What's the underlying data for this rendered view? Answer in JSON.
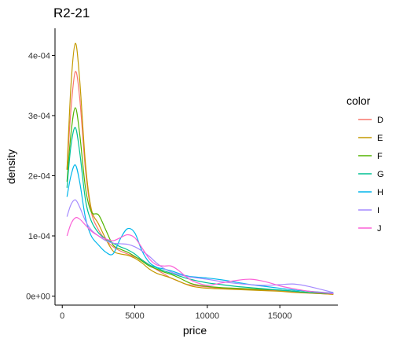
{
  "chart_data": {
    "type": "line",
    "title": "R2-21",
    "xlabel": "price",
    "ylabel": "density",
    "xlim": [
      -500,
      19000
    ],
    "ylim": [
      -1.5e-05,
      0.000445
    ],
    "x_ticks": [
      0,
      5000,
      10000,
      15000
    ],
    "x_tick_labels": [
      "0",
      "5000",
      "10000",
      "15000"
    ],
    "y_ticks": [
      0,
      0.0001,
      0.0002,
      0.0003,
      0.0004
    ],
    "y_tick_labels": [
      "0e+00",
      "1e-04",
      "2e-04",
      "3e-04",
      "4e-04"
    ],
    "grid": false,
    "legend": {
      "title": "color",
      "position": "right"
    },
    "series": [
      {
        "name": "D",
        "color": "#F8766D",
        "x": [
          326,
          600,
          900,
          1200,
          1600,
          2000,
          2500,
          3000,
          3500,
          4000,
          4500,
          5000,
          5500,
          6000,
          6500,
          7000,
          7500,
          8000,
          8500,
          9000,
          10000,
          11000,
          12000,
          13000,
          14000,
          15000,
          16000,
          17000,
          18692
        ],
        "y": [
          0.00021,
          0.00031,
          0.000373,
          0.00033,
          0.00021,
          0.00014,
          0.00011,
          9.3e-05,
          8.2e-05,
          7.5e-05,
          7e-05,
          6.5e-05,
          6e-05,
          5.2e-05,
          4.4e-05,
          3.7e-05,
          3e-05,
          2.5e-05,
          2e-05,
          1.8e-05,
          1.5e-05,
          1.3e-05,
          1.2e-05,
          1.1e-05,
          1e-05,
          9e-06,
          7e-06,
          5e-06,
          3e-06
        ]
      },
      {
        "name": "E",
        "color": "#C49A00",
        "x": [
          326,
          600,
          900,
          1200,
          1600,
          2000,
          2500,
          3000,
          3500,
          4000,
          4500,
          5000,
          5500,
          6000,
          6500,
          7000,
          7500,
          8000,
          8500,
          9000,
          10000,
          11000,
          12000,
          13000,
          14000,
          15000,
          16000,
          17000,
          18692
        ],
        "y": [
          0.00021,
          0.00035,
          0.00042,
          0.00036,
          0.00022,
          0.000145,
          0.00012,
          9.5e-05,
          7.5e-05,
          7e-05,
          6.8e-05,
          6.3e-05,
          5.5e-05,
          4.5e-05,
          3.8e-05,
          3.4e-05,
          3e-05,
          2.5e-05,
          2e-05,
          1.6e-05,
          1.3e-05,
          1.2e-05,
          1.1e-05,
          1e-05,
          9e-06,
          8e-06,
          6e-06,
          5e-06,
          3e-06
        ]
      },
      {
        "name": "F",
        "color": "#53B400",
        "x": [
          326,
          600,
          900,
          1200,
          1600,
          2000,
          2500,
          3000,
          3500,
          4000,
          4500,
          5000,
          5500,
          6000,
          6500,
          7000,
          7500,
          8000,
          8500,
          9000,
          10000,
          11000,
          12000,
          13000,
          14000,
          15000,
          16000,
          17000,
          18692
        ],
        "y": [
          0.00019,
          0.00027,
          0.000313,
          0.00027,
          0.00018,
          0.00014,
          0.000135,
          0.00011,
          8.5e-05,
          7.8e-05,
          7.3e-05,
          6.6e-05,
          5.8e-05,
          5e-05,
          4.5e-05,
          4e-05,
          3.6e-05,
          3.1e-05,
          2.5e-05,
          2e-05,
          1.6e-05,
          1.4e-05,
          1.3e-05,
          1.2e-05,
          1.1e-05,
          1e-05,
          8e-06,
          6e-06,
          4e-06
        ]
      },
      {
        "name": "G",
        "color": "#00C094",
        "x": [
          326,
          600,
          900,
          1200,
          1600,
          2000,
          2500,
          3000,
          3500,
          4000,
          4500,
          5000,
          5500,
          6000,
          6500,
          7000,
          7500,
          8000,
          8500,
          9000,
          10000,
          11000,
          12000,
          13000,
          14000,
          15000,
          16000,
          17000,
          18692
        ],
        "y": [
          0.00018,
          0.00025,
          0.00028,
          0.00024,
          0.00016,
          0.000125,
          0.000105,
          9.5e-05,
          8.8e-05,
          8.2e-05,
          7.7e-05,
          7e-05,
          6e-05,
          5.2e-05,
          4.7e-05,
          4.2e-05,
          3.8e-05,
          3.4e-05,
          3e-05,
          2.7e-05,
          2.2e-05,
          1.9e-05,
          1.6e-05,
          1.4e-05,
          1.2e-05,
          1e-05,
          8e-06,
          6e-06,
          4e-06
        ]
      },
      {
        "name": "H",
        "color": "#00B6EB",
        "x": [
          326,
          600,
          900,
          1200,
          1600,
          2000,
          2500,
          3000,
          3500,
          4000,
          4500,
          5000,
          5500,
          6000,
          6500,
          7000,
          7500,
          8000,
          8500,
          9000,
          10000,
          11000,
          12000,
          13000,
          14000,
          15000,
          16000,
          17000,
          18692
        ],
        "y": [
          0.000165,
          0.0002,
          0.000218,
          0.00019,
          0.00013,
          0.0001,
          8.5e-05,
          7.3e-05,
          7e-05,
          9.5e-05,
          0.000112,
          0.000105,
          7.5e-05,
          5.6e-05,
          4.8e-05,
          4.5e-05,
          4.2e-05,
          3.8e-05,
          3.4e-05,
          3.2e-05,
          3e-05,
          2.7e-05,
          2.3e-05,
          1.9e-05,
          1.6e-05,
          1.3e-05,
          1e-05,
          8e-06,
          5e-06
        ]
      },
      {
        "name": "I",
        "color": "#A58AFF",
        "x": [
          326,
          600,
          900,
          1200,
          1600,
          2000,
          2500,
          3000,
          3500,
          4000,
          4500,
          5000,
          5500,
          6000,
          6500,
          7000,
          7500,
          8000,
          8500,
          9000,
          10000,
          11000,
          12000,
          13000,
          14000,
          15000,
          16000,
          17000,
          18692
        ],
        "y": [
          0.000132,
          0.000152,
          0.00016,
          0.000148,
          0.000125,
          0.00011,
          0.0001,
          9.2e-05,
          8.8e-05,
          8.7e-05,
          8.6e-05,
          8.2e-05,
          7.5e-05,
          6.6e-05,
          5.5e-05,
          4.6e-05,
          4e-05,
          3.6e-05,
          3.3e-05,
          3.1e-05,
          2.8e-05,
          2.4e-05,
          2.1e-05,
          1.9e-05,
          1.8e-05,
          1.9e-05,
          2e-05,
          1.6e-05,
          6e-06
        ]
      },
      {
        "name": "J",
        "color": "#FB61D7",
        "x": [
          326,
          600,
          900,
          1200,
          1600,
          2000,
          2500,
          3000,
          3500,
          4000,
          4500,
          5000,
          5500,
          6000,
          6500,
          7000,
          7500,
          8000,
          8500,
          9000,
          10000,
          11000,
          12000,
          13000,
          14000,
          15000,
          16000,
          17000,
          18692
        ],
        "y": [
          0.0001,
          0.00012,
          0.00013,
          0.000128,
          0.000118,
          0.000108,
          0.0001,
          9.5e-05,
          9.2e-05,
          9.7e-05,
          0.000102,
          9.7e-05,
          8e-05,
          6.2e-05,
          5.2e-05,
          5e-05,
          5e-05,
          4.3e-05,
          3.3e-05,
          2.5e-05,
          1.8e-05,
          2.2e-05,
          2.6e-05,
          2.8e-05,
          2.4e-05,
          1.7e-05,
          1.2e-05,
          8e-06,
          4e-06
        ]
      }
    ]
  }
}
